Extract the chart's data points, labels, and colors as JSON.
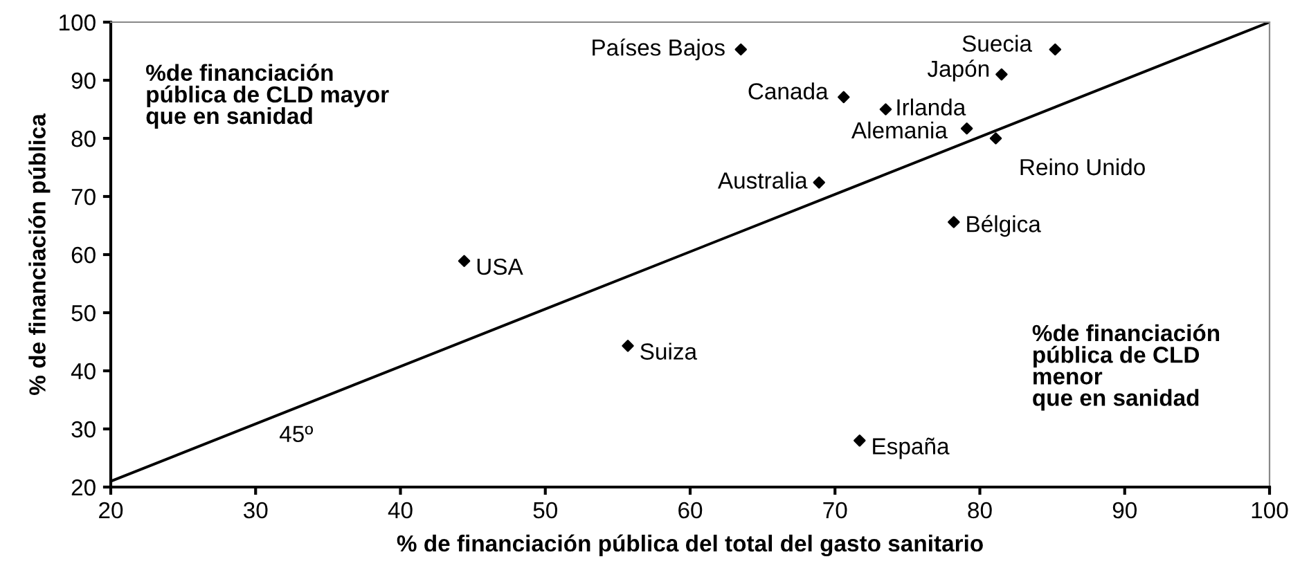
{
  "chart_data": {
    "type": "scatter",
    "xlabel": "% de financiación pública del total del gasto sanitario",
    "ylabel": "% de financiación pública",
    "series": [
      {
        "color": "#000000",
        "marker": "diamond",
        "x": [
          63.5,
          85.2,
          81.5,
          70.6,
          73.5,
          79.1,
          81.1,
          68.9,
          78.2,
          44.4,
          55.7,
          71.7
        ],
        "values": [
          95.3,
          95.3,
          91.0,
          87.1,
          85.0,
          81.7,
          80.0,
          72.4,
          65.6,
          58.9,
          44.3,
          28.0
        ]
      },
      {
        "type": "line",
        "color": "#000000",
        "marker": "none",
        "line_style": "solid",
        "x": [
          20,
          100
        ],
        "values": [
          21,
          100
        ]
      }
    ],
    "annotations": [
      {
        "text": "Países Bajos",
        "x": 63.5,
        "y": 95.3
      },
      {
        "text": "Suecia",
        "x": 85.2,
        "y": 95.3
      },
      {
        "text": "Japón",
        "x": 81.5,
        "y": 91.0
      },
      {
        "text": "Canada",
        "x": 70.6,
        "y": 87.1
      },
      {
        "text": "Irlanda",
        "x": 73.5,
        "y": 85.0
      },
      {
        "text": "Alemania",
        "x": 79.1,
        "y": 81.7
      },
      {
        "text": "Reino Unido",
        "x": 81.1,
        "y": 80.0
      },
      {
        "text": "Australia",
        "x": 68.9,
        "y": 72.4
      },
      {
        "text": "Bélgica",
        "x": 78.2,
        "y": 65.6
      },
      {
        "text": "USA",
        "x": 44.4,
        "y": 58.9
      },
      {
        "text": "Suiza",
        "x": 55.7,
        "y": 44.3
      },
      {
        "text": "España",
        "x": 71.7,
        "y": 28.0
      },
      "%de financiación\npública de CLD mayor\nque en sanidad",
      "%de financiación\npública de CLD\nmenor\nque en sanidad",
      "45º"
    ],
    "xlim": [
      20,
      100
    ],
    "ylim": [
      20,
      100
    ],
    "xticks": [
      20,
      30,
      40,
      50,
      60,
      70,
      80,
      90,
      100
    ],
    "yticks": [
      20,
      30,
      40,
      50,
      60,
      70,
      80,
      90,
      100
    ],
    "grid": false,
    "legend": false
  }
}
